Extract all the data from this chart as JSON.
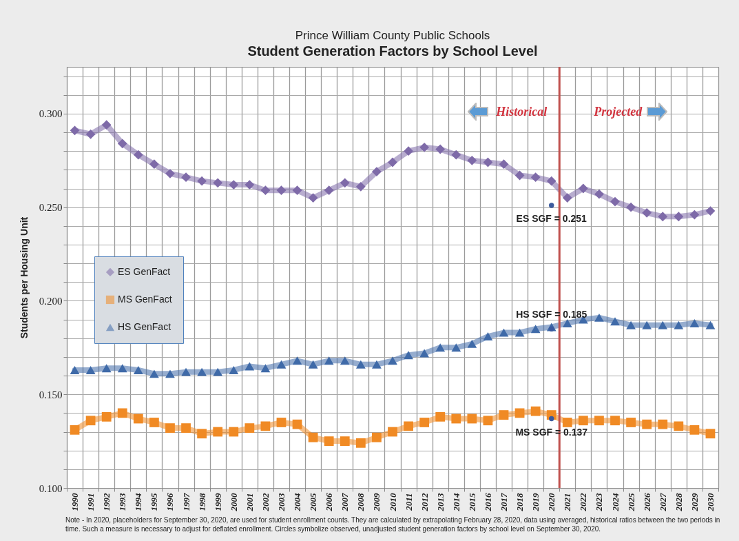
{
  "chart_data": {
    "type": "line",
    "title": "Prince William County Public Schools",
    "subtitle": "Student Generation Factors by School Level",
    "ylabel": "Students per Housing Unit",
    "categories": [
      "1990",
      "1991",
      "1992",
      "1993",
      "1994",
      "1995",
      "1996",
      "1997",
      "1998",
      "1999",
      "2000",
      "2001",
      "2002",
      "2003",
      "2004",
      "2005",
      "2006",
      "2007",
      "2008",
      "2009",
      "2010",
      "2011",
      "2012",
      "2013",
      "2014",
      "2015",
      "2016",
      "2017",
      "2018",
      "2019",
      "2020",
      "2021",
      "2022",
      "2023",
      "2024",
      "2025",
      "2026",
      "2027",
      "2028",
      "2029",
      "2030"
    ],
    "series": [
      {
        "name": "ES GenFact",
        "color": "#7e6aa8",
        "marker": "diamond",
        "values": [
          0.291,
          0.289,
          0.294,
          0.284,
          0.278,
          0.273,
          0.268,
          0.266,
          0.264,
          0.263,
          0.262,
          0.262,
          0.259,
          0.259,
          0.259,
          0.255,
          0.259,
          0.263,
          0.261,
          0.269,
          0.274,
          0.28,
          0.282,
          0.281,
          0.278,
          0.275,
          0.274,
          0.273,
          0.267,
          0.266,
          0.264,
          0.255,
          0.26,
          0.257,
          0.253,
          0.25,
          0.247,
          0.245,
          0.245,
          0.246,
          0.248
        ]
      },
      {
        "name": "MS GenFact",
        "color": "#f08a24",
        "marker": "square",
        "values": [
          0.131,
          0.136,
          0.138,
          0.14,
          0.137,
          0.135,
          0.132,
          0.132,
          0.129,
          0.13,
          0.13,
          0.132,
          0.133,
          0.135,
          0.134,
          0.127,
          0.125,
          0.125,
          0.124,
          0.127,
          0.13,
          0.133,
          0.135,
          0.138,
          0.137,
          0.137,
          0.136,
          0.139,
          0.14,
          0.141,
          0.139,
          0.135,
          0.136,
          0.136,
          0.136,
          0.135,
          0.134,
          0.134,
          0.133,
          0.131,
          0.129
        ]
      },
      {
        "name": "HS GenFact",
        "color": "#3f6aa8",
        "marker": "triangle",
        "values": [
          0.163,
          0.163,
          0.164,
          0.164,
          0.163,
          0.161,
          0.161,
          0.162,
          0.162,
          0.162,
          0.163,
          0.165,
          0.164,
          0.166,
          0.168,
          0.166,
          0.168,
          0.168,
          0.166,
          0.166,
          0.168,
          0.171,
          0.172,
          0.175,
          0.175,
          0.177,
          0.181,
          0.183,
          0.183,
          0.185,
          0.186,
          0.188,
          0.19,
          0.191,
          0.189,
          0.187,
          0.187,
          0.187,
          0.187,
          0.188,
          0.187
        ]
      },
      {
        "type": "scatter",
        "color": "#3a5a9e",
        "marker": "circle",
        "values": [
          null,
          null,
          null,
          null,
          null,
          null,
          null,
          null,
          null,
          null,
          null,
          null,
          null,
          null,
          null,
          null,
          null,
          null,
          null,
          null,
          null,
          null,
          null,
          null,
          null,
          null,
          null,
          null,
          null,
          null,
          0.251,
          null,
          null,
          null,
          null,
          null,
          null,
          null,
          null,
          null,
          null
        ]
      },
      {
        "type": "scatter",
        "color": "#3a5a9e",
        "marker": "circle",
        "values": [
          null,
          null,
          null,
          null,
          null,
          null,
          null,
          null,
          null,
          null,
          null,
          null,
          null,
          null,
          null,
          null,
          null,
          null,
          null,
          null,
          null,
          null,
          null,
          null,
          null,
          null,
          null,
          null,
          null,
          null,
          0.185,
          null,
          null,
          null,
          null,
          null,
          null,
          null,
          null,
          null,
          null
        ]
      },
      {
        "type": "scatter",
        "color": "#3a5a9e",
        "marker": "circle",
        "values": [
          null,
          null,
          null,
          null,
          null,
          null,
          null,
          null,
          null,
          null,
          null,
          null,
          null,
          null,
          null,
          null,
          null,
          null,
          null,
          null,
          null,
          null,
          null,
          null,
          null,
          null,
          null,
          null,
          null,
          null,
          0.137,
          null,
          null,
          null,
          null,
          null,
          null,
          null,
          null,
          null,
          null
        ]
      }
    ],
    "ylim": [
      0.1,
      0.325
    ],
    "yticks": [
      {
        "value": 0.1,
        "label": "0.100"
      },
      {
        "value": 0.11,
        "label": null
      },
      {
        "value": 0.12,
        "label": null
      },
      {
        "value": 0.13,
        "label": null
      },
      {
        "value": 0.14,
        "label": null
      },
      {
        "value": 0.15,
        "label": "0.150"
      },
      {
        "value": 0.16,
        "label": null
      },
      {
        "value": 0.17,
        "label": null
      },
      {
        "value": 0.18,
        "label": null
      },
      {
        "value": 0.19,
        "label": null
      },
      {
        "value": 0.2,
        "label": "0.200"
      },
      {
        "value": 0.21,
        "label": null
      },
      {
        "value": 0.22,
        "label": null
      },
      {
        "value": 0.23,
        "label": null
      },
      {
        "value": 0.24,
        "label": null
      },
      {
        "value": 0.25,
        "label": "0.250"
      },
      {
        "value": 0.26,
        "label": null
      },
      {
        "value": 0.27,
        "label": null
      },
      {
        "value": 0.28,
        "label": null
      },
      {
        "value": 0.29,
        "label": null
      },
      {
        "value": 0.3,
        "label": "0.300"
      },
      {
        "value": 0.31,
        "label": null
      },
      {
        "value": 0.32,
        "label": null
      }
    ],
    "grid": true,
    "legend": "left",
    "ref_lines": [
      {
        "axis": "x",
        "value": "2021",
        "color": "#c0504d"
      }
    ],
    "annotations": [
      {
        "text": "ES SGF = 0.251",
        "x": "2020",
        "y": 0.251
      },
      {
        "text": "HS SGF = 0.185",
        "x": "2020",
        "y": 0.185
      },
      {
        "text": "MS SGF = 0.137",
        "x": "2020",
        "y": 0.137
      },
      "Historical",
      "Projected",
      "Note - In 2020, placeholders for September 30, 2020, are used for student enrollment counts. They are calculated by extrapolating February 28, 2020, data using averaged, historical ratios between the two periods in time. Such a measure is necessary to adjust for deflated enrollment.  Circles symbolize observed, unadjusted student generation factors  by school level on September 30, 2020."
    ]
  }
}
